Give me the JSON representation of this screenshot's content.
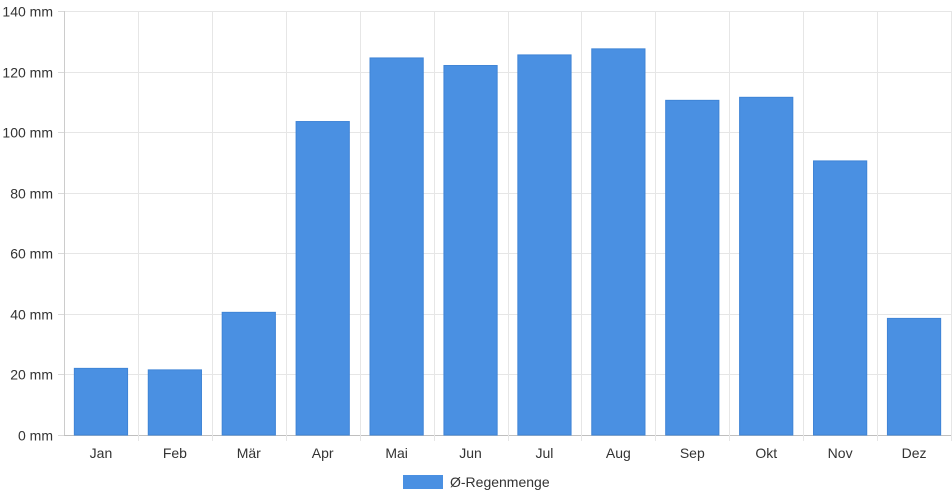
{
  "chart_data": {
    "type": "bar",
    "categories": [
      "Jan",
      "Feb",
      "Mär",
      "Apr",
      "Mai",
      "Jun",
      "Jul",
      "Aug",
      "Sep",
      "Okt",
      "Nov",
      "Dez"
    ],
    "series": [
      {
        "name": "Ø-Regenmenge",
        "color": "#4a90e2",
        "values": [
          22,
          21.5,
          40.5,
          103.5,
          124.5,
          122,
          125.5,
          127.5,
          110.5,
          111.5,
          90.5,
          38.5
        ]
      }
    ],
    "ylim": [
      0,
      140
    ],
    "yticks": [
      0,
      20,
      40,
      60,
      80,
      100,
      120,
      140
    ],
    "y_unit": "mm",
    "ytick_labels": [
      "0 mm",
      "20 mm",
      "40 mm",
      "60 mm",
      "80 mm",
      "100 mm",
      "120 mm",
      "140 mm"
    ],
    "grid": true,
    "legend": {
      "placement": "bottom-center",
      "label": "Ø-Regenmenge"
    }
  }
}
